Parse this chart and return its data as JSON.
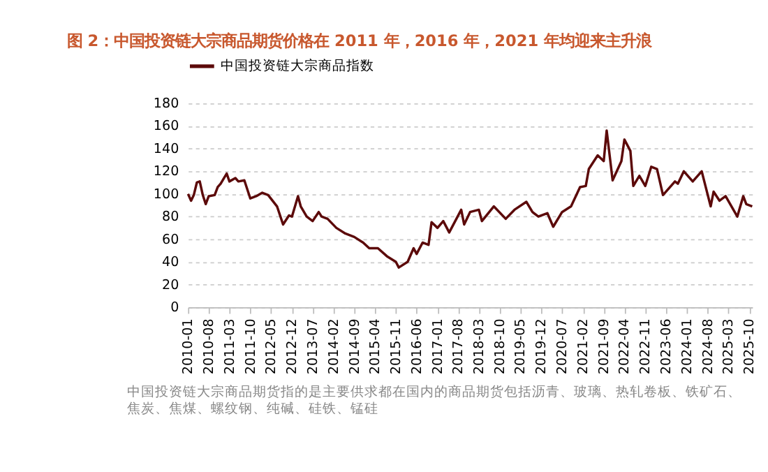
{
  "chart_data": {
    "type": "line",
    "title": "图 2：中国投资链大宗商品期货价格在 2011 年，2016 年，2021 年均迎来主升浪",
    "x": [
      "2010-01",
      "2010-02",
      "2010-03",
      "2010-04",
      "2010-05",
      "2010-06",
      "2010-07",
      "2010-08",
      "2010-10",
      "2010-11",
      "2010-12",
      "2011-02",
      "2011-03",
      "2011-05",
      "2011-06",
      "2011-08",
      "2011-10",
      "2011-12",
      "2012-02",
      "2012-04",
      "2012-07",
      "2012-09",
      "2012-11",
      "2012-12",
      "2013-02",
      "2013-03",
      "2013-05",
      "2013-07",
      "2013-09",
      "2013-10",
      "2013-12",
      "2014-03",
      "2014-06",
      "2014-09",
      "2014-12",
      "2015-02",
      "2015-05",
      "2015-08",
      "2015-11",
      "2015-12",
      "2016-03",
      "2016-05",
      "2016-06",
      "2016-08",
      "2016-10",
      "2016-11",
      "2017-01",
      "2017-03",
      "2017-05",
      "2017-09",
      "2017-10",
      "2017-12",
      "2018-03",
      "2018-04",
      "2018-08",
      "2018-12",
      "2019-03",
      "2019-07",
      "2019-09",
      "2019-11",
      "2020-02",
      "2020-04",
      "2020-07",
      "2020-10",
      "2021-01",
      "2021-03",
      "2021-04",
      "2021-07",
      "2021-09",
      "2021-10",
      "2021-12",
      "2022-03",
      "2022-04",
      "2022-06",
      "2022-07",
      "2022-09",
      "2022-11",
      "2023-01",
      "2023-03",
      "2023-05",
      "2023-09",
      "2023-10",
      "2023-12",
      "2024-03",
      "2024-06",
      "2024-09",
      "2024-10",
      "2024-12",
      "2025-02",
      "2025-06",
      "2025-08",
      "2025-09",
      "2025-11"
    ],
    "series": [
      {
        "name": "中国投资链大宗商品指数",
        "color": "#5c0a0a",
        "values": [
          100,
          94,
          99,
          110,
          111,
          99,
          91,
          98,
          99,
          106,
          109,
          118,
          111,
          114,
          111,
          112,
          96,
          98,
          101,
          99,
          89,
          73,
          81,
          80,
          98,
          89,
          80,
          76,
          84,
          80,
          78,
          70,
          65,
          62,
          57,
          52,
          52,
          45,
          40,
          35,
          40,
          52,
          47,
          57,
          55,
          75,
          70,
          76,
          66,
          86,
          73,
          84,
          86,
          76,
          89,
          78,
          86,
          93,
          84,
          80,
          83,
          71,
          84,
          89,
          106,
          107,
          122,
          134,
          129,
          156,
          112,
          129,
          148,
          138,
          107,
          116,
          107,
          124,
          122,
          99,
          111,
          109,
          120,
          111,
          120,
          89,
          102,
          94,
          98,
          80,
          98,
          91,
          89
        ]
      }
    ],
    "xlim": [
      "2010-01",
      "2025-11"
    ],
    "xticks": [
      "2010-01",
      "2010-08",
      "2011-03",
      "2011-10",
      "2012-05",
      "2012-12",
      "2013-07",
      "2014-02",
      "2014-09",
      "2015-04",
      "2015-11",
      "2016-06",
      "2017-01",
      "2017-08",
      "2018-03",
      "2018-10",
      "2019-05",
      "2019-12",
      "2020-07",
      "2021-02",
      "2021-09",
      "2022-04",
      "2022-11",
      "2023-06",
      "2024-01",
      "2024-08",
      "2025-03",
      "2025-10"
    ],
    "ylim": [
      0,
      180
    ],
    "yticks": [
      0,
      20,
      40,
      60,
      80,
      100,
      120,
      140,
      160,
      180
    ],
    "grid": "y",
    "legend": "top",
    "marker": "none",
    "line_style": "solid",
    "annotations": [
      "中国投资链大宗商品期货指的是主要供求都在国内的商品期货包括沥青、玻璃、热轧卷板、铁矿石、焦炭、焦煤、螺纹钢、纯碱、硅铁、锰硅"
    ]
  }
}
